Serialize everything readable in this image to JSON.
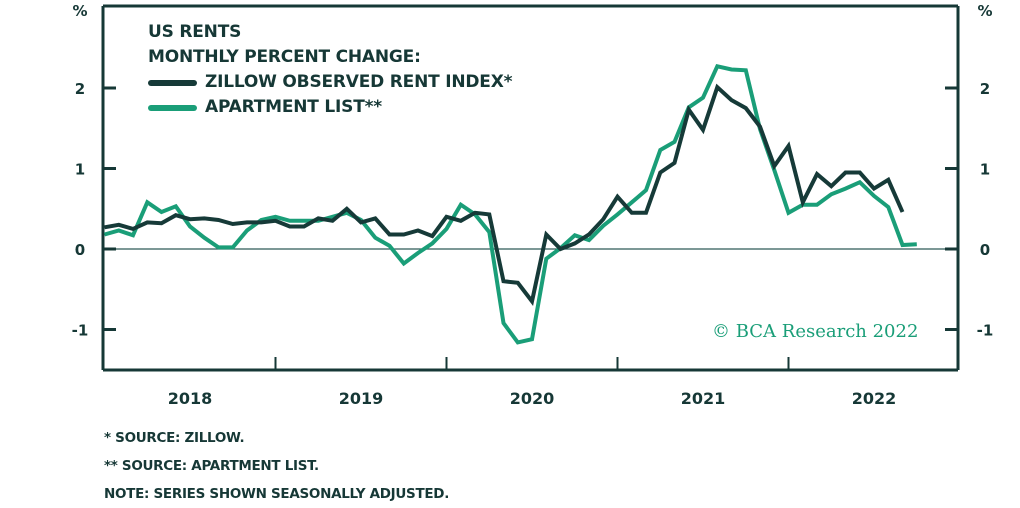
{
  "chart_data": {
    "type": "line",
    "title": "US RENTS",
    "subtitle": "MONTHLY PERCENT CHANGE:",
    "ylabel_left": "%",
    "ylabel_right": "%",
    "ylim": [
      -1.5,
      3.1
    ],
    "yticks": [
      2,
      1,
      0,
      -1
    ],
    "ytick_labels": [
      "2",
      "1",
      "0",
      "-1"
    ],
    "xlim": [
      "2018-01",
      "2022-12"
    ],
    "x_tick_labels": [
      "2018",
      "2019",
      "2020",
      "2021",
      "2022"
    ],
    "grid": false,
    "zero_line": true,
    "legend_position": "top-left",
    "x": [
      "2018-01",
      "2018-02",
      "2018-03",
      "2018-04",
      "2018-05",
      "2018-06",
      "2018-07",
      "2018-08",
      "2018-09",
      "2018-10",
      "2018-11",
      "2018-12",
      "2019-01",
      "2019-02",
      "2019-03",
      "2019-04",
      "2019-05",
      "2019-06",
      "2019-07",
      "2019-08",
      "2019-09",
      "2019-10",
      "2019-11",
      "2019-12",
      "2020-01",
      "2020-02",
      "2020-03",
      "2020-04",
      "2020-05",
      "2020-06",
      "2020-07",
      "2020-08",
      "2020-09",
      "2020-10",
      "2020-11",
      "2020-12",
      "2021-01",
      "2021-02",
      "2021-03",
      "2021-04",
      "2021-05",
      "2021-06",
      "2021-07",
      "2021-08",
      "2021-09",
      "2021-10",
      "2021-11",
      "2021-12",
      "2022-01",
      "2022-02",
      "2022-03",
      "2022-04",
      "2022-05",
      "2022-06",
      "2022-07",
      "2022-08",
      "2022-09",
      "2022-10"
    ],
    "series": [
      {
        "name": "ZILLOW OBSERVED RENT INDEX*",
        "color": "#163a38",
        "values": [
          0.27,
          0.3,
          0.25,
          0.33,
          0.32,
          0.42,
          0.37,
          0.38,
          0.36,
          0.31,
          0.33,
          0.33,
          0.35,
          0.28,
          0.28,
          0.38,
          0.35,
          0.5,
          0.33,
          0.38,
          0.18,
          0.18,
          0.23,
          0.16,
          0.4,
          0.35,
          0.45,
          0.43,
          -0.4,
          -0.42,
          -0.65,
          0.18,
          0.0,
          0.07,
          0.18,
          0.37,
          0.65,
          0.45,
          0.45,
          0.95,
          1.07,
          1.73,
          1.48,
          2.01,
          1.85,
          1.75,
          1.52,
          1.03,
          1.28,
          0.58,
          0.93,
          0.78,
          0.95,
          0.95,
          0.75,
          0.86,
          0.46,
          null
        ]
      },
      {
        "name": "APARTMENT LIST**",
        "color": "#1a9e78",
        "values": [
          0.18,
          0.23,
          0.17,
          0.58,
          0.46,
          0.53,
          0.28,
          0.14,
          0.02,
          0.02,
          0.23,
          0.36,
          0.4,
          0.35,
          0.35,
          0.35,
          0.4,
          0.45,
          0.36,
          0.14,
          0.04,
          -0.18,
          -0.05,
          0.07,
          0.25,
          0.55,
          0.43,
          0.21,
          -0.92,
          -1.16,
          -1.12,
          -0.12,
          0.01,
          0.17,
          0.11,
          0.29,
          0.43,
          0.58,
          0.73,
          1.23,
          1.33,
          1.76,
          1.88,
          2.27,
          2.23,
          2.22,
          1.49,
          0.98,
          0.45,
          0.55,
          0.55,
          0.68,
          0.75,
          0.83,
          0.66,
          0.52,
          0.05,
          0.06
        ]
      }
    ]
  },
  "notes": [
    "*  SOURCE: ZILLOW.",
    "** SOURCE: APARTMENT LIST.",
    "NOTE: SERIES SHOWN SEASONALLY ADJUSTED."
  ],
  "copyright": "© BCA Research 2022",
  "colors": {
    "axis": "#163836",
    "zillow": "#163a38",
    "apartment_list": "#1a9e78"
  }
}
